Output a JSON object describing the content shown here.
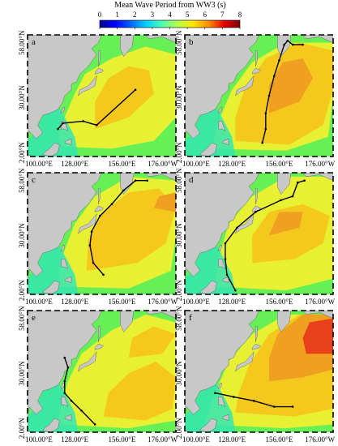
{
  "colorbar": {
    "title": "Mean Wave Period from WW3 (s)",
    "ticks": [
      "0",
      "1",
      "2",
      "3",
      "4",
      "5",
      "6",
      "7",
      "8"
    ],
    "colors": [
      "#00008f",
      "#0000ff",
      "#0066ff",
      "#00d2ff",
      "#4cffb3",
      "#b3ff4c",
      "#ffe600",
      "#ff8c00",
      "#e60000",
      "#800000"
    ]
  },
  "axes": {
    "lat_labels": [
      "58.00°N",
      "30.00°N",
      "2.00°N"
    ],
    "lon_labels": [
      "100.00°E",
      "128.00°E",
      "156.00°E",
      "176.00°W"
    ]
  },
  "palette": {
    "land": "#c8c8c8",
    "sea_low": "#33e6b3",
    "sea_mid": "#66f055",
    "sea_yellow": "#e8f033",
    "sea_gold": "#f5c81e",
    "sea_orange": "#f0a020",
    "sea_red": "#e8401a",
    "track": "#000000"
  },
  "panels": [
    {
      "letter": "a",
      "track": [
        [
          118,
          14
        ],
        [
          121,
          17
        ],
        [
          133,
          18
        ],
        [
          141,
          16
        ],
        [
          164,
          34
        ]
      ]
    },
    {
      "letter": "b",
      "track": [
        [
          146,
          7
        ],
        [
          148,
          14
        ],
        [
          148,
          22
        ],
        [
          150,
          31
        ],
        [
          153,
          41
        ],
        [
          156,
          49
        ],
        [
          159,
          57
        ],
        [
          161,
          59
        ],
        [
          164,
          57
        ],
        [
          170,
          57
        ]
      ]
    },
    {
      "letter": "c",
      "track": [
        [
          145,
          10
        ],
        [
          139,
          16
        ],
        [
          137,
          25
        ],
        [
          138,
          32
        ],
        [
          143,
          40
        ],
        [
          150,
          46
        ],
        [
          157,
          53
        ],
        [
          164,
          58
        ],
        [
          171,
          58
        ]
      ]
    },
    {
      "letter": "d",
      "track": [
        [
          130,
          2
        ],
        [
          125,
          10
        ],
        [
          124,
          18
        ],
        [
          124,
          26
        ],
        [
          131,
          34
        ],
        [
          142,
          42
        ],
        [
          157,
          48
        ],
        [
          164,
          50
        ],
        [
          167,
          57
        ],
        [
          171,
          58
        ]
      ]
    },
    {
      "letter": "e",
      "track": [
        [
          140,
          4
        ],
        [
          132,
          11
        ],
        [
          126,
          16
        ],
        [
          122,
          20
        ],
        [
          122,
          26
        ],
        [
          124,
          33
        ],
        [
          122,
          38
        ]
      ]
    },
    {
      "letter": "f",
      "track": [
        [
          118,
          20
        ],
        [
          129,
          18
        ],
        [
          141,
          16
        ],
        [
          153,
          13
        ],
        [
          164,
          13
        ]
      ]
    }
  ]
}
